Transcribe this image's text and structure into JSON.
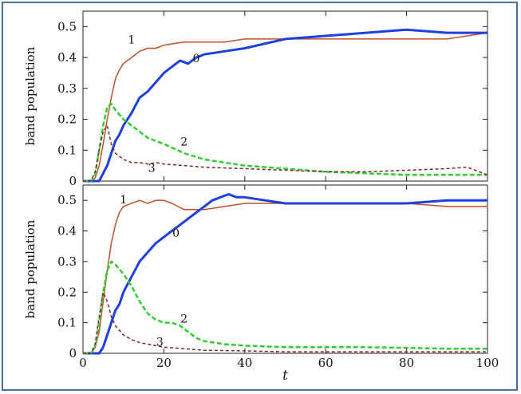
{
  "chart_data": [
    {
      "type": "line",
      "ylabel": "band population",
      "xlabel": "",
      "xlim": [
        0,
        100
      ],
      "ylim": [
        0,
        0.55
      ],
      "xticks": [
        "0",
        "20",
        "40",
        "60",
        "80",
        "100"
      ],
      "yticks": [
        "0",
        "0.1",
        "0.2",
        "0.3",
        "0.4",
        "0.5"
      ],
      "series": [
        {
          "name": "1",
          "color": "#c0522b",
          "dash": "",
          "x": [
            0,
            2,
            3,
            4,
            5,
            6,
            7,
            8,
            9,
            10,
            12,
            14,
            16,
            18,
            20,
            25,
            30,
            35,
            40,
            50,
            60,
            70,
            80,
            90,
            100
          ],
          "y": [
            0,
            0,
            0.01,
            0.05,
            0.12,
            0.2,
            0.27,
            0.33,
            0.36,
            0.38,
            0.4,
            0.42,
            0.43,
            0.43,
            0.44,
            0.45,
            0.45,
            0.45,
            0.46,
            0.46,
            0.46,
            0.46,
            0.46,
            0.46,
            0.48
          ]
        },
        {
          "name": "0",
          "color": "#1f3fe0",
          "dash": "",
          "x": [
            0,
            2,
            4,
            6,
            7,
            8,
            9,
            10,
            12,
            14,
            16,
            18,
            20,
            22,
            24,
            26,
            28,
            30,
            35,
            40,
            50,
            60,
            70,
            80,
            90,
            100
          ],
          "y": [
            0,
            0,
            0,
            0.05,
            0.09,
            0.13,
            0.15,
            0.18,
            0.22,
            0.27,
            0.29,
            0.32,
            0.35,
            0.37,
            0.39,
            0.38,
            0.4,
            0.41,
            0.42,
            0.43,
            0.46,
            0.47,
            0.48,
            0.49,
            0.48,
            0.48
          ]
        },
        {
          "name": "2",
          "color": "#33cc33",
          "dash": "6,3",
          "x": [
            0,
            2,
            3,
            4,
            5,
            6,
            7,
            8,
            10,
            12,
            14,
            16,
            18,
            20,
            25,
            30,
            40,
            50,
            60,
            70,
            80,
            90,
            100
          ],
          "y": [
            0,
            0,
            0.02,
            0.1,
            0.18,
            0.24,
            0.25,
            0.23,
            0.2,
            0.18,
            0.16,
            0.14,
            0.13,
            0.12,
            0.09,
            0.07,
            0.05,
            0.04,
            0.03,
            0.025,
            0.02,
            0.02,
            0.02
          ]
        },
        {
          "name": "3",
          "color": "#7a2a2a",
          "dash": "4,3",
          "x": [
            0,
            2,
            3,
            4,
            5,
            6,
            7,
            8,
            10,
            12,
            14,
            16,
            18,
            20,
            25,
            30,
            40,
            50,
            60,
            70,
            80,
            90,
            95,
            100
          ],
          "y": [
            0,
            0,
            0.03,
            0.1,
            0.16,
            0.18,
            0.12,
            0.09,
            0.07,
            0.06,
            0.06,
            0.055,
            0.06,
            0.055,
            0.05,
            0.045,
            0.04,
            0.035,
            0.03,
            0.03,
            0.035,
            0.04,
            0.045,
            0.02
          ]
        }
      ],
      "curve_labels": [
        {
          "text": "1",
          "x": 12,
          "y": 0.445
        },
        {
          "text": "0",
          "x": 28,
          "y": 0.385
        },
        {
          "text": "2",
          "x": 25,
          "y": 0.115
        },
        {
          "text": "3",
          "x": 17,
          "y": 0.03
        }
      ]
    },
    {
      "type": "line",
      "ylabel": "band population",
      "xlabel": "t",
      "xlim": [
        0,
        100
      ],
      "ylim": [
        0,
        0.55
      ],
      "xticks": [
        "0",
        "20",
        "40",
        "60",
        "80",
        "100"
      ],
      "yticks": [
        "0",
        "0.1",
        "0.2",
        "0.3",
        "0.4",
        "0.5"
      ],
      "series": [
        {
          "name": "1",
          "color": "#c0522b",
          "dash": "",
          "x": [
            0,
            2,
            3,
            4,
            5,
            6,
            7,
            8,
            9,
            10,
            12,
            14,
            16,
            18,
            20,
            22,
            25,
            30,
            35,
            40,
            50,
            60,
            70,
            80,
            90,
            100
          ],
          "y": [
            0,
            0,
            0.02,
            0.07,
            0.17,
            0.27,
            0.36,
            0.42,
            0.46,
            0.48,
            0.49,
            0.5,
            0.49,
            0.5,
            0.5,
            0.49,
            0.47,
            0.47,
            0.48,
            0.49,
            0.49,
            0.49,
            0.49,
            0.49,
            0.48,
            0.48
          ]
        },
        {
          "name": "0",
          "color": "#1f3fe0",
          "dash": "",
          "x": [
            0,
            2,
            4,
            5,
            6,
            7,
            8,
            9,
            10,
            12,
            14,
            16,
            18,
            20,
            22,
            24,
            26,
            28,
            30,
            32,
            34,
            36,
            38,
            40,
            45,
            50,
            60,
            70,
            80,
            90,
            100
          ],
          "y": [
            0,
            0,
            0,
            0.02,
            0.06,
            0.1,
            0.14,
            0.16,
            0.2,
            0.25,
            0.3,
            0.33,
            0.36,
            0.38,
            0.4,
            0.42,
            0.44,
            0.46,
            0.48,
            0.5,
            0.51,
            0.52,
            0.51,
            0.51,
            0.5,
            0.49,
            0.49,
            0.49,
            0.49,
            0.5,
            0.5
          ]
        },
        {
          "name": "2",
          "color": "#33cc33",
          "dash": "6,3",
          "x": [
            0,
            2,
            3,
            4,
            5,
            6,
            7,
            8,
            10,
            12,
            14,
            16,
            18,
            20,
            22,
            24,
            26,
            28,
            30,
            35,
            40,
            50,
            60,
            70,
            80,
            90,
            100
          ],
          "y": [
            0,
            0,
            0.02,
            0.1,
            0.2,
            0.27,
            0.3,
            0.29,
            0.26,
            0.22,
            0.17,
            0.13,
            0.11,
            0.1,
            0.1,
            0.09,
            0.07,
            0.05,
            0.04,
            0.03,
            0.025,
            0.02,
            0.02,
            0.02,
            0.018,
            0.015,
            0.015
          ]
        },
        {
          "name": "3",
          "color": "#7a2a2a",
          "dash": "4,3",
          "x": [
            0,
            2,
            3,
            4,
            5,
            6,
            7,
            8,
            10,
            12,
            14,
            16,
            18,
            20,
            25,
            30,
            40,
            50,
            60,
            70,
            80,
            90,
            100
          ],
          "y": [
            0,
            0,
            0.03,
            0.12,
            0.2,
            0.17,
            0.12,
            0.09,
            0.06,
            0.045,
            0.035,
            0.03,
            0.025,
            0.02,
            0.015,
            0.01,
            0.008,
            0.005,
            0.005,
            0.005,
            0.005,
            0.005,
            0.005
          ]
        }
      ],
      "curve_labels": [
        {
          "text": "1",
          "x": 10,
          "y": 0.49
        },
        {
          "text": "0",
          "x": 23,
          "y": 0.38
        },
        {
          "text": "2",
          "x": 25,
          "y": 0.1
        },
        {
          "text": "3",
          "x": 19,
          "y": 0.025
        }
      ]
    }
  ]
}
